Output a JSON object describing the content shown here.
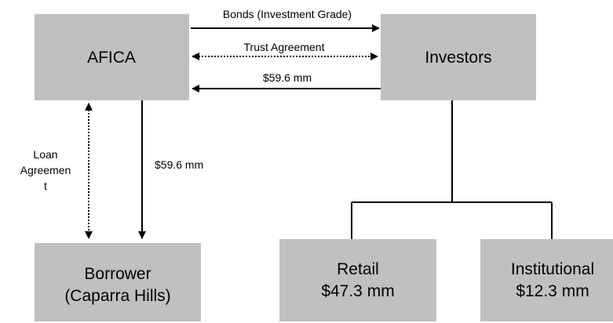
{
  "nodes": [
    {
      "label": [
        "AFICA"
      ]
    },
    {
      "label": [
        "Investors"
      ]
    },
    {
      "label": [
        "Borrower",
        "(Caparra Hills)"
      ]
    },
    {
      "label": [
        "Retail",
        "$47.3 mm"
      ]
    },
    {
      "label": [
        "Institutional",
        "$12.3 mm"
      ]
    }
  ],
  "edges": [
    {
      "label": [
        "Bonds (Investment Grade)"
      ]
    },
    {
      "label": [
        "Trust Agreement"
      ]
    },
    {
      "label": [
        "$59.6 mm"
      ]
    },
    {
      "label": [
        "Loan",
        "Agreemen",
        "t"
      ]
    },
    {
      "label": [
        "$59.6 mm"
      ]
    }
  ]
}
